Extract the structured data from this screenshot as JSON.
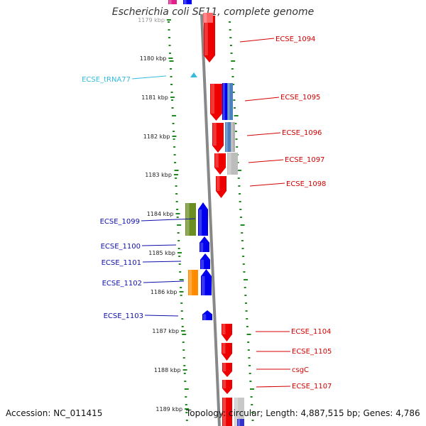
{
  "title": "Escherichia coli SE11, complete genome",
  "footer": {
    "accession": "Accession: NC_011415",
    "summary": "Topology: circular; Length: 4,887,515 bp; Genes: 4,786"
  },
  "ticks": [
    "1179 kbp",
    "1180 kbp",
    "1181 kbp",
    "1182 kbp",
    "1183 kbp",
    "1184 kbp",
    "1185 kbp",
    "1186 kbp",
    "1187 kbp",
    "1188 kbp",
    "1189 kbp"
  ],
  "features": [
    {
      "label": "ECSE_1094",
      "strand": "reverse",
      "color": "#d40000"
    },
    {
      "label": "ECSE_tRNA77",
      "strand": "forward",
      "color": "#33bbdd"
    },
    {
      "label": "ECSE_1095",
      "strand": "reverse",
      "color": "#d40000"
    },
    {
      "label": "ECSE_1096",
      "strand": "reverse",
      "color": "#d40000"
    },
    {
      "label": "ECSE_1097",
      "strand": "reverse",
      "color": "#d40000"
    },
    {
      "label": "ECSE_1098",
      "strand": "reverse",
      "color": "#d40000"
    },
    {
      "label": "ECSE_1099",
      "strand": "forward",
      "color": "#1010aa"
    },
    {
      "label": "ECSE_1100",
      "strand": "forward",
      "color": "#1010aa"
    },
    {
      "label": "ECSE_1101",
      "strand": "forward",
      "color": "#1010aa"
    },
    {
      "label": "ECSE_1102",
      "strand": "forward",
      "color": "#1010aa"
    },
    {
      "label": "ECSE_1103",
      "strand": "forward",
      "color": "#1010aa"
    },
    {
      "label": "ECSE_1104",
      "strand": "reverse",
      "color": "#d40000"
    },
    {
      "label": "ECSE_1105",
      "strand": "reverse",
      "color": "#d40000"
    },
    {
      "label": "csgC",
      "strand": "reverse",
      "color": "#d40000"
    },
    {
      "label": "ECSE_1107",
      "strand": "reverse",
      "color": "#d40000"
    }
  ],
  "colors": {
    "forward_gene": "#0000ee",
    "reverse_gene": "#ee0000",
    "trna": "#33bbdd",
    "gc_dots": "#228822",
    "backbone": "#888888"
  }
}
